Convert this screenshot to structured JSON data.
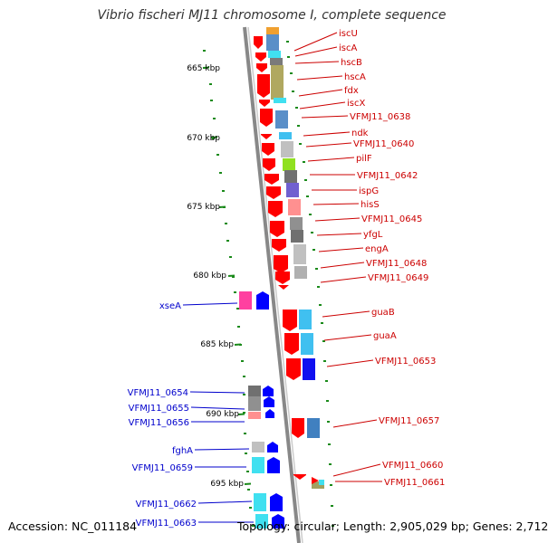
{
  "title": "Vibrio fischeri MJ11 chromosome I, complete sequence",
  "footer": {
    "accession": "Accession: NC_011184",
    "summary": "Topology: circular; Length: 2,905,029 bp; Genes: 2,712"
  },
  "ticks": [
    "665 kbp",
    "670 kbp",
    "675 kbp",
    "680 kbp",
    "685 kbp",
    "690 kbp",
    "695 kbp"
  ],
  "genes_forward": [
    "iscU",
    "iscA",
    "hscB",
    "hscA",
    "fdx",
    "iscX",
    "VFMJ11_0638",
    "ndk",
    "VFMJ11_0640",
    "pilF",
    "VFMJ11_0642",
    "ispG",
    "hisS",
    "VFMJ11_0645",
    "yfgL",
    "engA",
    "VFMJ11_0648",
    "VFMJ11_0649",
    "guaB",
    "guaA",
    "VFMJ11_0653",
    "VFMJ11_0657",
    "VFMJ11_0660",
    "VFMJ11_0661"
  ],
  "genes_reverse": [
    "xseA",
    "VFMJ11_0654",
    "VFMJ11_0655",
    "VFMJ11_0656",
    "fghA",
    "VFMJ11_0659",
    "VFMJ11_0662",
    "VFMJ11_0663"
  ],
  "colors": {
    "forward_strand": "#ff0000",
    "reverse_strand": "#0000ff",
    "forward_label": "#cc0000",
    "reverse_label": "#0000cc",
    "backbone": "#888888",
    "gc_skew": "#1a8a1a"
  }
}
